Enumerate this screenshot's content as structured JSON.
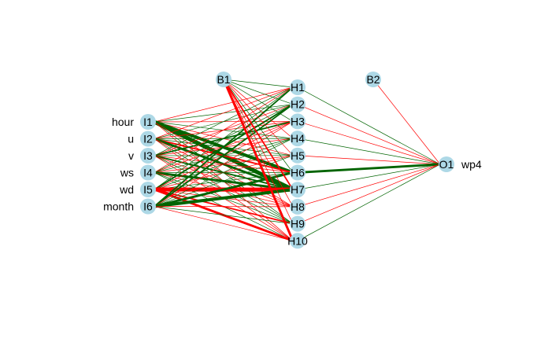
{
  "colors": {
    "positive": "#006400",
    "negative": "#ff0000",
    "node_fill": "#add8e6",
    "text": "#000000"
  },
  "nodes": {
    "inputs": [
      {
        "id": "I1",
        "label": "I1",
        "var": "hour"
      },
      {
        "id": "I2",
        "label": "I2",
        "var": "u"
      },
      {
        "id": "I3",
        "label": "I3",
        "var": "v"
      },
      {
        "id": "I4",
        "label": "I4",
        "var": "ws"
      },
      {
        "id": "I5",
        "label": "I5",
        "var": "wd"
      },
      {
        "id": "I6",
        "label": "I6",
        "var": "month"
      }
    ],
    "hidden": [
      {
        "id": "H1",
        "label": "H1"
      },
      {
        "id": "H2",
        "label": "H2"
      },
      {
        "id": "H3",
        "label": "H3"
      },
      {
        "id": "H4",
        "label": "H4"
      },
      {
        "id": "H5",
        "label": "H5"
      },
      {
        "id": "H6",
        "label": "H6"
      },
      {
        "id": "H7",
        "label": "H7"
      },
      {
        "id": "H8",
        "label": "H8"
      },
      {
        "id": "H9",
        "label": "H9"
      },
      {
        "id": "H10",
        "label": "H10"
      }
    ],
    "bias1": {
      "id": "B1",
      "label": "B1"
    },
    "bias2": {
      "id": "B2",
      "label": "B2"
    },
    "output": {
      "id": "O1",
      "label": "O1",
      "var": "wp4"
    }
  },
  "edges": {
    "input_hidden": [
      [
        "I1",
        "H1",
        "neg",
        1
      ],
      [
        "I1",
        "H2",
        "pos",
        1
      ],
      [
        "I1",
        "H3",
        "neg",
        1
      ],
      [
        "I1",
        "H4",
        "pos",
        1
      ],
      [
        "I1",
        "H5",
        "neg",
        1
      ],
      [
        "I1",
        "H6",
        "pos",
        4
      ],
      [
        "I1",
        "H7",
        "pos",
        5
      ],
      [
        "I1",
        "H8",
        "neg",
        1
      ],
      [
        "I1",
        "H9",
        "pos",
        1
      ],
      [
        "I1",
        "H10",
        "neg",
        1
      ],
      [
        "I2",
        "H1",
        "neg",
        1
      ],
      [
        "I2",
        "H2",
        "pos",
        1
      ],
      [
        "I2",
        "H3",
        "neg",
        1
      ],
      [
        "I2",
        "H4",
        "pos",
        1
      ],
      [
        "I2",
        "H5",
        "pos",
        1
      ],
      [
        "I2",
        "H6",
        "neg",
        2
      ],
      [
        "I2",
        "H7",
        "pos",
        3
      ],
      [
        "I2",
        "H8",
        "neg",
        1
      ],
      [
        "I2",
        "H9",
        "pos",
        1
      ],
      [
        "I2",
        "H10",
        "neg",
        1
      ],
      [
        "I3",
        "H1",
        "pos",
        1
      ],
      [
        "I3",
        "H2",
        "neg",
        1
      ],
      [
        "I3",
        "H3",
        "pos",
        2
      ],
      [
        "I3",
        "H4",
        "neg",
        1
      ],
      [
        "I3",
        "H5",
        "pos",
        1
      ],
      [
        "I3",
        "H6",
        "neg",
        1
      ],
      [
        "I3",
        "H7",
        "pos",
        2
      ],
      [
        "I3",
        "H8",
        "neg",
        1
      ],
      [
        "I3",
        "H9",
        "pos",
        1
      ],
      [
        "I3",
        "H10",
        "neg",
        1
      ],
      [
        "I4",
        "H1",
        "neg",
        1
      ],
      [
        "I4",
        "H2",
        "pos",
        1
      ],
      [
        "I4",
        "H3",
        "neg",
        1
      ],
      [
        "I4",
        "H4",
        "pos",
        1
      ],
      [
        "I4",
        "H5",
        "neg",
        1
      ],
      [
        "I4",
        "H6",
        "pos",
        1
      ],
      [
        "I4",
        "H7",
        "pos",
        3
      ],
      [
        "I4",
        "H8",
        "neg",
        1
      ],
      [
        "I4",
        "H9",
        "pos",
        1
      ],
      [
        "I4",
        "H10",
        "pos",
        1
      ],
      [
        "I5",
        "H1",
        "pos",
        1
      ],
      [
        "I5",
        "H2",
        "pos",
        2
      ],
      [
        "I5",
        "H3",
        "neg",
        1
      ],
      [
        "I5",
        "H4",
        "pos",
        1
      ],
      [
        "I5",
        "H5",
        "neg",
        1
      ],
      [
        "I5",
        "H6",
        "pos",
        1
      ],
      [
        "I5",
        "H7",
        "neg",
        5
      ],
      [
        "I5",
        "H8",
        "neg",
        1
      ],
      [
        "I5",
        "H9",
        "neg",
        2
      ],
      [
        "I5",
        "H10",
        "neg",
        3
      ],
      [
        "I6",
        "H1",
        "pos",
        2
      ],
      [
        "I6",
        "H2",
        "pos",
        2
      ],
      [
        "I6",
        "H3",
        "neg",
        1
      ],
      [
        "I6",
        "H4",
        "pos",
        1
      ],
      [
        "I6",
        "H5",
        "pos",
        1
      ],
      [
        "I6",
        "H6",
        "pos",
        3
      ],
      [
        "I6",
        "H7",
        "pos",
        4
      ],
      [
        "I6",
        "H8",
        "neg",
        1
      ],
      [
        "I6",
        "H9",
        "pos",
        1
      ],
      [
        "I6",
        "H10",
        "neg",
        1
      ]
    ],
    "bias1_hidden": [
      [
        "B1",
        "H1",
        "pos",
        1
      ],
      [
        "B1",
        "H2",
        "pos",
        1
      ],
      [
        "B1",
        "H3",
        "pos",
        1
      ],
      [
        "B1",
        "H4",
        "neg",
        1
      ],
      [
        "B1",
        "H5",
        "neg",
        1
      ],
      [
        "B1",
        "H6",
        "pos",
        1
      ],
      [
        "B1",
        "H7",
        "neg",
        2
      ],
      [
        "B1",
        "H8",
        "neg",
        1
      ],
      [
        "B1",
        "H9",
        "neg",
        1
      ],
      [
        "B1",
        "H10",
        "neg",
        3
      ]
    ],
    "hidden_output": [
      [
        "H1",
        "O1",
        "pos",
        1
      ],
      [
        "H2",
        "O1",
        "neg",
        1
      ],
      [
        "H3",
        "O1",
        "neg",
        1
      ],
      [
        "H4",
        "O1",
        "pos",
        1
      ],
      [
        "H5",
        "O1",
        "neg",
        1
      ],
      [
        "H6",
        "O1",
        "pos",
        3
      ],
      [
        "H7",
        "O1",
        "pos",
        1
      ],
      [
        "H8",
        "O1",
        "neg",
        1
      ],
      [
        "H9",
        "O1",
        "neg",
        1
      ],
      [
        "H10",
        "O1",
        "pos",
        1
      ]
    ],
    "bias2_output": [
      [
        "B2",
        "O1",
        "neg",
        1
      ]
    ]
  }
}
